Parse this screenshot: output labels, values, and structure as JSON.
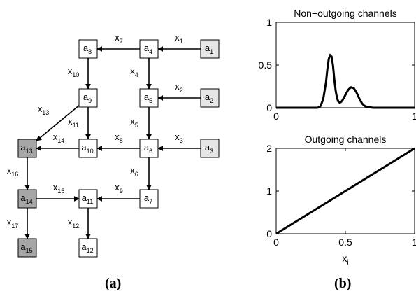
{
  "graph": {
    "caption": "(a)",
    "nodes": [
      {
        "id": "a1",
        "base": "a",
        "sub": "1",
        "shade": "light"
      },
      {
        "id": "a2",
        "base": "a",
        "sub": "2",
        "shade": "light"
      },
      {
        "id": "a3",
        "base": "a",
        "sub": "3",
        "shade": "light"
      },
      {
        "id": "a4",
        "base": "a",
        "sub": "4",
        "shade": "white"
      },
      {
        "id": "a5",
        "base": "a",
        "sub": "5",
        "shade": "white"
      },
      {
        "id": "a6",
        "base": "a",
        "sub": "6",
        "shade": "white"
      },
      {
        "id": "a7",
        "base": "a",
        "sub": "7",
        "shade": "white"
      },
      {
        "id": "a8",
        "base": "a",
        "sub": "8",
        "shade": "white"
      },
      {
        "id": "a9",
        "base": "a",
        "sub": "9",
        "shade": "white"
      },
      {
        "id": "a10",
        "base": "a",
        "sub": "10",
        "shade": "white"
      },
      {
        "id": "a11",
        "base": "a",
        "sub": "11",
        "shade": "white"
      },
      {
        "id": "a12",
        "base": "a",
        "sub": "12",
        "shade": "white"
      },
      {
        "id": "a13",
        "base": "a",
        "sub": "13",
        "shade": "dark"
      },
      {
        "id": "a14",
        "base": "a",
        "sub": "14",
        "shade": "dark"
      },
      {
        "id": "a15",
        "base": "a",
        "sub": "15",
        "shade": "dark"
      }
    ],
    "edges": [
      {
        "from": "a1",
        "to": "a4",
        "base": "x",
        "sub": "1"
      },
      {
        "from": "a2",
        "to": "a5",
        "base": "x",
        "sub": "2"
      },
      {
        "from": "a3",
        "to": "a6",
        "base": "x",
        "sub": "3"
      },
      {
        "from": "a4",
        "to": "a5",
        "base": "x",
        "sub": "4"
      },
      {
        "from": "a5",
        "to": "a6",
        "base": "x",
        "sub": "5"
      },
      {
        "from": "a6",
        "to": "a7",
        "base": "x",
        "sub": "6"
      },
      {
        "from": "a4",
        "to": "a8",
        "base": "x",
        "sub": "7"
      },
      {
        "from": "a6",
        "to": "a10",
        "base": "x",
        "sub": "8"
      },
      {
        "from": "a7",
        "to": "a11",
        "base": "x",
        "sub": "9"
      },
      {
        "from": "a8",
        "to": "a9",
        "base": "x",
        "sub": "10"
      },
      {
        "from": "a9",
        "to": "a10",
        "base": "x",
        "sub": "11"
      },
      {
        "from": "a11",
        "to": "a12",
        "base": "x",
        "sub": "12"
      },
      {
        "from": "a9",
        "to": "a13",
        "base": "x",
        "sub": "13"
      },
      {
        "from": "a10",
        "to": "a13",
        "base": "x",
        "sub": "14"
      },
      {
        "from": "a14",
        "to": "a11",
        "base": "x",
        "sub": "15"
      },
      {
        "from": "a13",
        "to": "a14",
        "base": "x",
        "sub": "16"
      },
      {
        "from": "a14",
        "to": "a15",
        "base": "x",
        "sub": "17"
      }
    ],
    "colors": {
      "white": "#ffffff",
      "light": "#e6e6e6",
      "dark": "#a6a6a6",
      "stroke": "#000000"
    }
  },
  "plots": {
    "caption": "(b)",
    "xlabel_base": "x",
    "xlabel_sub": "i"
  },
  "chart_data": [
    {
      "type": "line",
      "title": "Non−outgoing channels",
      "xlim": [
        0,
        1
      ],
      "ylim": [
        0,
        1
      ],
      "xticks": [
        0,
        1
      ],
      "xtick_labels": [
        "0",
        "1"
      ],
      "yticks": [
        0,
        0.5,
        1
      ],
      "ytick_labels": [
        "0",
        "0.5",
        "1"
      ],
      "grid": false,
      "legend": "none",
      "series": [
        {
          "x": [
            0,
            0.3,
            0.32,
            0.34,
            0.36,
            0.37,
            0.38,
            0.39,
            0.4,
            0.41,
            0.42,
            0.43,
            0.44,
            0.45,
            0.46,
            0.47,
            0.48,
            0.5,
            0.52,
            0.54,
            0.56,
            0.58,
            0.6,
            0.62,
            0.64,
            0.66,
            0.7,
            1
          ],
          "y": [
            0,
            0,
            0.02,
            0.1,
            0.3,
            0.46,
            0.57,
            0.62,
            0.6,
            0.5,
            0.33,
            0.2,
            0.11,
            0.07,
            0.06,
            0.07,
            0.09,
            0.15,
            0.21,
            0.24,
            0.23,
            0.18,
            0.11,
            0.05,
            0.02,
            0.01,
            0,
            0
          ],
          "color": "#000000"
        }
      ]
    },
    {
      "type": "line",
      "title": "Outgoing channels",
      "xlim": [
        0,
        1
      ],
      "ylim": [
        0,
        2
      ],
      "xticks": [
        0,
        0.5,
        1
      ],
      "xtick_labels": [
        "0",
        "0.5",
        "1"
      ],
      "yticks": [
        0,
        1,
        2
      ],
      "ytick_labels": [
        "0",
        "1",
        "2"
      ],
      "grid": false,
      "legend": "none",
      "series": [
        {
          "x": [
            0,
            1
          ],
          "y": [
            0,
            2
          ],
          "color": "#000000"
        }
      ]
    }
  ]
}
